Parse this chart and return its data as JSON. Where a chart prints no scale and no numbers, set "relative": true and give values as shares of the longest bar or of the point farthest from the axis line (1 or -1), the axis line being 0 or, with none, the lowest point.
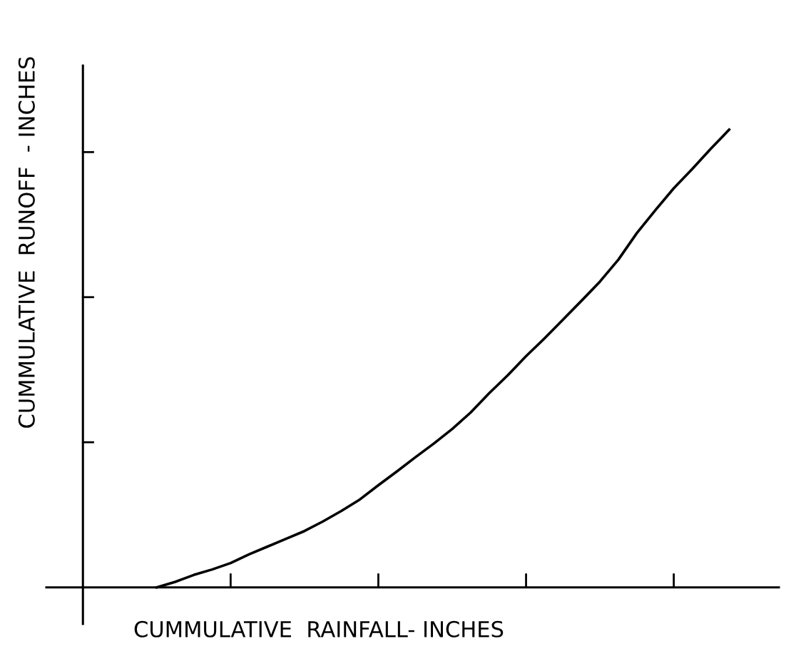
{
  "chart_data": {
    "type": "line",
    "relative": true,
    "xlabel": "CUMMULATIVE  RAINFALL- INCHES",
    "ylabel": "CUMMULATIVE  RUNOFF  - INCHES",
    "categories": [
      null,
      null,
      null,
      null,
      null,
      null,
      null,
      null,
      null,
      null,
      null,
      null,
      null,
      null,
      null,
      null,
      null,
      null,
      null,
      null,
      null,
      null,
      null,
      null,
      null,
      null,
      null,
      null,
      null,
      null,
      null,
      null,
      null,
      null,
      null,
      null
    ],
    "series": [
      {
        "color": "#000000",
        "values": [
          null,
          null,
          null,
          null,
          0,
          0.012,
          0.027,
          0.039,
          0.053,
          0.072,
          0.089,
          0.106,
          0.123,
          0.144,
          0.167,
          0.192,
          0.223,
          0.253,
          0.284,
          0.314,
          0.346,
          0.382,
          0.424,
          0.463,
          0.505,
          0.544,
          0.585,
          0.626,
          0.668,
          0.716,
          0.774,
          0.824,
          0.872,
          0.914,
          0.958,
          1.0
        ]
      }
    ],
    "tick_labels": false,
    "grid": false,
    "legend": false,
    "marker": "none",
    "line_style": "solid"
  }
}
